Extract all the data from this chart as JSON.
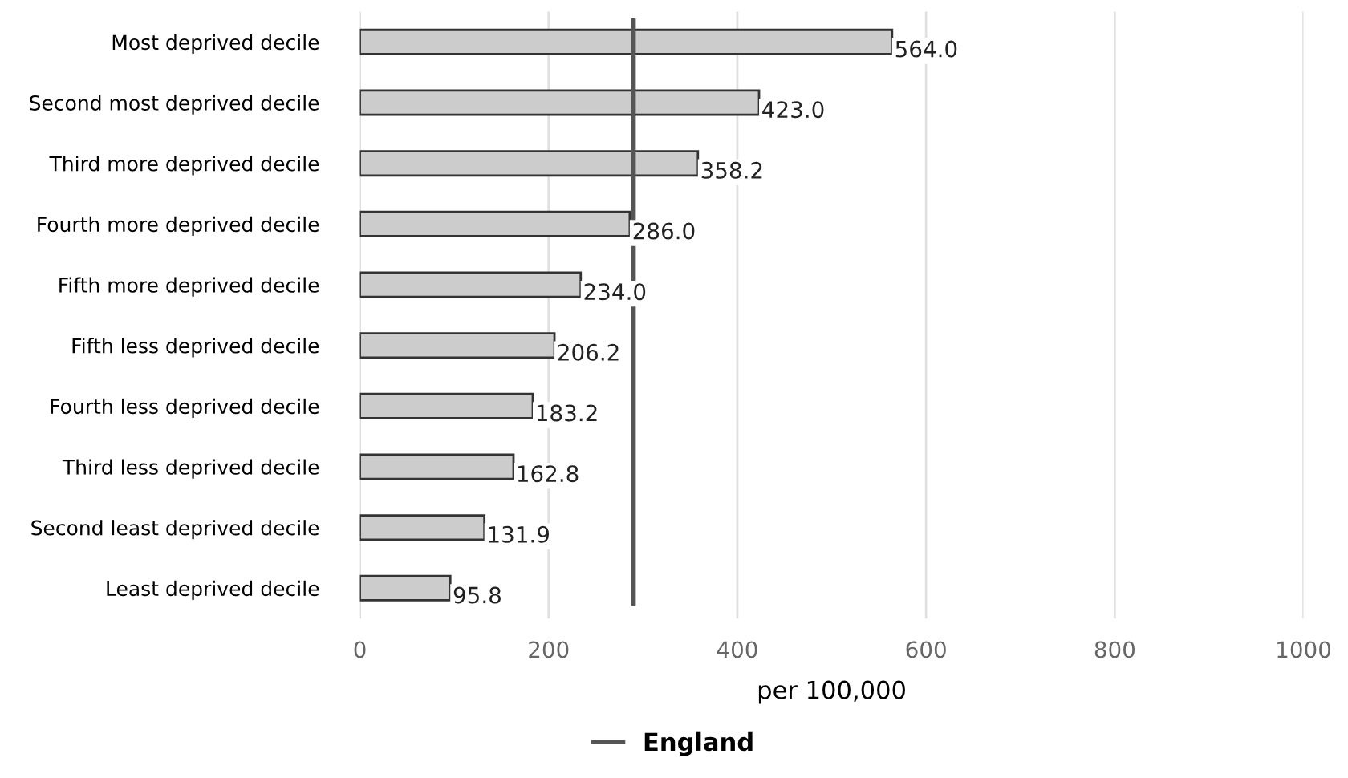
{
  "chart_data": {
    "type": "bar",
    "orientation": "horizontal",
    "xlabel": "per 100,000",
    "categories": [
      "Most deprived decile",
      "Second most deprived decile",
      "Third more deprived decile",
      "Fourth more deprived decile",
      "Fifth more deprived decile",
      "Fifth less deprived decile",
      "Fourth less deprived decile",
      "Third less deprived decile",
      "Second least deprived decile",
      "Least deprived decile"
    ],
    "values": [
      564.0,
      423.0,
      358.2,
      286.0,
      234.0,
      206.2,
      183.2,
      162.8,
      131.9,
      95.8
    ],
    "value_labels": [
      "564.0",
      "423.0",
      "358.2",
      "286.0",
      "234.0",
      "206.2",
      "183.2",
      "162.8",
      "131.9",
      "95.8"
    ],
    "color": "#cccccc",
    "xlim": [
      0,
      1000
    ],
    "xticks": [
      0,
      200,
      400,
      600,
      800,
      1000
    ],
    "grid": "x",
    "ref_lines": [
      {
        "axis": "x",
        "value": 290,
        "label": "England",
        "color": "#555555",
        "line_style": "solid"
      }
    ],
    "legend": "bottom"
  }
}
